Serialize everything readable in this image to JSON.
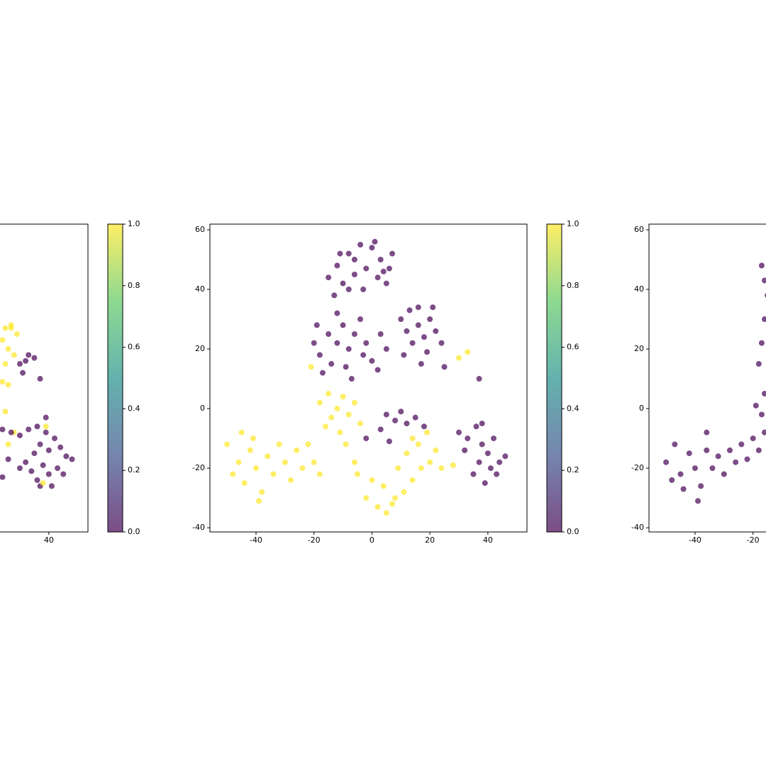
{
  "chart_data": [
    {
      "type": "scatter",
      "cmap": "viridis",
      "alpha": 0.7,
      "x": [
        25,
        27,
        29,
        24,
        26,
        28,
        25,
        27,
        24,
        26,
        25,
        28,
        30,
        32,
        33,
        35,
        31,
        37,
        24,
        27,
        30,
        33,
        36,
        39,
        42,
        44,
        46,
        48,
        40,
        37,
        35,
        32,
        34,
        36,
        40,
        43,
        45,
        38,
        30,
        26,
        24,
        37,
        41,
        39,
        38,
        39,
        26
      ],
      "values": [
        27,
        28,
        25,
        23,
        20,
        18,
        15,
        27,
        9,
        8,
        -1,
        -8,
        15,
        16,
        18,
        17,
        12,
        10,
        -7,
        -8,
        -9,
        -7,
        -6,
        -8,
        -10,
        -13,
        -16,
        -17,
        -14,
        -12,
        -15,
        -18,
        -21,
        -24,
        -22,
        -20,
        -22,
        -19,
        -20,
        -17,
        -23,
        -26,
        -26,
        -3,
        -25,
        -6,
        -12
      ],
      "colors": [
        1,
        1,
        1,
        1,
        1,
        1,
        1,
        1,
        1,
        1,
        1,
        1,
        0,
        0,
        0,
        0,
        0,
        0,
        0,
        0,
        0,
        0,
        0,
        0,
        0,
        0,
        0,
        0,
        0,
        0,
        0,
        0,
        0,
        0,
        0,
        0,
        0,
        0,
        0,
        0,
        0,
        0,
        0,
        0,
        1,
        1,
        1
      ],
      "xlim": [
        -55.9,
        53.5
      ],
      "ylim": [
        -41.4,
        61.9
      ],
      "xticks": [
        40
      ],
      "yticks": [],
      "colorbar": {
        "lim": [
          0,
          1
        ],
        "ticks": [
          {
            "value": 0,
            "label": "0.0"
          },
          {
            "value": 0.2,
            "label": "0.2"
          },
          {
            "value": 0.4,
            "label": "0.4"
          },
          {
            "value": 0.6,
            "label": "0.6"
          },
          {
            "value": 0.8,
            "label": "0.8"
          },
          {
            "value": 1,
            "label": "1.0"
          }
        ]
      }
    },
    {
      "type": "scatter",
      "cmap": "viridis",
      "alpha": 0.7,
      "x": [
        -8,
        -4,
        0,
        3,
        6,
        -12,
        -15,
        -10,
        -6,
        -2,
        2,
        5,
        -8,
        -3,
        -13,
        7,
        -6,
        1,
        -11,
        4,
        -20,
        -18,
        -15,
        -12,
        -10,
        -8,
        -14,
        -17,
        -6,
        -4,
        -9,
        -12,
        -19,
        -7,
        -3,
        0,
        2,
        -2,
        5,
        3,
        10,
        13,
        16,
        18,
        20,
        14,
        22,
        16,
        12,
        19,
        24,
        17,
        25,
        11,
        21,
        30,
        33,
        36,
        38,
        40,
        42,
        44,
        37,
        35,
        39,
        41,
        32,
        46,
        38,
        43,
        37,
        5,
        8,
        10,
        12,
        15,
        18,
        3,
        6,
        -2,
        -50,
        -46,
        -44,
        -42,
        -40,
        -38,
        -36,
        -34,
        -48,
        -41,
        -39,
        -32,
        -30,
        -28,
        -26,
        -24,
        -22,
        -20,
        -18,
        -45,
        -18,
        -15,
        -12,
        -10,
        -8,
        -14,
        -6,
        -16,
        -11,
        -9,
        -4,
        -2,
        2,
        5,
        8,
        11,
        4,
        0,
        -5,
        14,
        17,
        12,
        16,
        20,
        22,
        9,
        -6,
        7,
        19,
        14,
        30,
        33,
        28,
        24,
        -21
      ],
      "values": [
        52,
        55,
        54,
        50,
        47,
        48,
        44,
        42,
        45,
        47,
        44,
        42,
        40,
        40,
        38,
        52,
        50,
        56,
        52,
        46,
        22,
        18,
        25,
        22,
        28,
        20,
        15,
        12,
        25,
        30,
        14,
        32,
        28,
        10,
        18,
        16,
        13,
        22,
        20,
        25,
        30,
        33,
        28,
        24,
        30,
        22,
        26,
        34,
        26,
        19,
        22,
        15,
        14,
        18,
        34,
        -8,
        -10,
        -6,
        -12,
        -15,
        -10,
        -18,
        -18,
        -22,
        -25,
        -20,
        -14,
        -16,
        -5,
        -22,
        10,
        -2,
        -4,
        -1,
        -5,
        -3,
        -6,
        -7,
        -11,
        -10,
        -12,
        -18,
        -25,
        -14,
        -20,
        -28,
        -16,
        -22,
        -22,
        -10,
        -31,
        -12,
        -18,
        -24,
        -14,
        -20,
        -12,
        -18,
        -22,
        -8,
        2,
        5,
        0,
        4,
        -2,
        -3,
        2,
        -6,
        -8,
        -12,
        -5,
        -30,
        -33,
        -35,
        -30,
        -28,
        -26,
        -24,
        -22,
        -24,
        -20,
        -15,
        -12,
        -18,
        -14,
        -20,
        -18,
        -32,
        -8,
        -10,
        17,
        19,
        -19,
        -20,
        14
      ],
      "colors": [
        0,
        0,
        0,
        0,
        0,
        0,
        0,
        0,
        0,
        0,
        0,
        0,
        0,
        0,
        0,
        0,
        0,
        0,
        0,
        0,
        0,
        0,
        0,
        0,
        0,
        0,
        0,
        0,
        0,
        0,
        0,
        0,
        0,
        0,
        0,
        0,
        0,
        0,
        0,
        0,
        0,
        0,
        0,
        0,
        0,
        0,
        0,
        0,
        0,
        0,
        0,
        0,
        0,
        0,
        0,
        0,
        0,
        0,
        0,
        0,
        0,
        0,
        0,
        0,
        0,
        0,
        0,
        0,
        0,
        0,
        0,
        0,
        0,
        0,
        0,
        0,
        0,
        0,
        0,
        0,
        1,
        1,
        1,
        1,
        1,
        1,
        1,
        1,
        1,
        1,
        1,
        1,
        1,
        1,
        1,
        1,
        1,
        1,
        1,
        1,
        1,
        1,
        1,
        1,
        1,
        1,
        1,
        1,
        1,
        1,
        1,
        1,
        1,
        1,
        1,
        1,
        1,
        1,
        1,
        1,
        1,
        1,
        1,
        1,
        1,
        1,
        1,
        1,
        1,
        1,
        1,
        1,
        1,
        1,
        1
      ],
      "xlim": [
        -55.9,
        53.5
      ],
      "ylim": [
        -41.4,
        61.9
      ],
      "xticks": [
        -40,
        -20,
        0,
        20,
        40
      ],
      "yticks": [
        -40,
        -20,
        0,
        20,
        40,
        60
      ],
      "colorbar": {
        "lim": [
          0,
          1
        ],
        "ticks": [
          {
            "value": 0,
            "label": "0.0"
          },
          {
            "value": 0.2,
            "label": "0.2"
          },
          {
            "value": 0.4,
            "label": "0.4"
          },
          {
            "value": 0.6,
            "label": "0.6"
          },
          {
            "value": 0.8,
            "label": "0.8"
          },
          {
            "value": 1,
            "label": "1.0"
          }
        ]
      }
    },
    {
      "type": "scatter",
      "cmap": "viridis",
      "alpha": 0.7,
      "x": [
        -50,
        -47,
        -45,
        -42,
        -40,
        -38,
        -36,
        -34,
        -44,
        -48,
        -39,
        -32,
        -30,
        -28,
        -26,
        -24,
        -22,
        -20,
        -18,
        -16,
        -17,
        -16,
        -18,
        -17,
        -16,
        -15,
        -16,
        -17,
        -19,
        -36
      ],
      "values": [
        -18,
        -12,
        -22,
        -15,
        -20,
        -26,
        -14,
        -20,
        -27,
        -24,
        -31,
        -16,
        -22,
        -14,
        -18,
        -12,
        -17,
        -10,
        -14,
        -8,
        -2,
        5,
        15,
        22,
        30,
        38,
        43,
        48,
        1,
        -8
      ],
      "colors": [
        0,
        0,
        0,
        0,
        0,
        0,
        0,
        0,
        0,
        0,
        0,
        0,
        0,
        0,
        0,
        0,
        0,
        0,
        0,
        0,
        0,
        0,
        0,
        0,
        0,
        0,
        0,
        0,
        0,
        0
      ],
      "xlim": [
        -55.9,
        53.5
      ],
      "ylim": [
        -41.4,
        61.9
      ],
      "xticks": [
        -40,
        -20
      ],
      "yticks": [
        -40,
        -20,
        0,
        20,
        40,
        60
      ]
    }
  ]
}
